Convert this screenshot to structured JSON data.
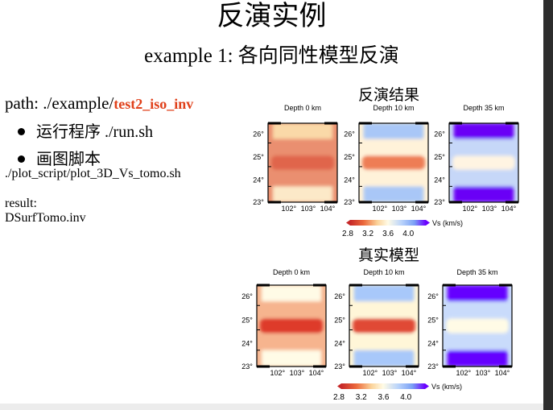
{
  "slide": {
    "title": "反演实例",
    "subtitle": "example 1: 各向同性模型反演",
    "path_prefix": "path: ./example/",
    "path_highlight": "test2_iso_inv",
    "bullets": [
      "运行程序 ./run.sh",
      "画图脚本"
    ],
    "script_path": "./plot_script/plot_3D_Vs_tomo.sh",
    "result_label": "result:",
    "result_file": "DSurfTomo.inv",
    "inversion_title": "反演结果",
    "true_title": "真实模型"
  },
  "colors": {
    "highlight": "#e0401a",
    "scale_low": "#c62828",
    "scale_mid": "#fffbe6",
    "scale_high": "#6a00ff"
  },
  "chart_data": [
    {
      "type": "heatmap",
      "title": "反演结果",
      "panel_titles": [
        "Depth 0 km",
        "Depth 10 km",
        "Depth 35 km"
      ],
      "x_ticks": [
        "102°",
        "103°",
        "104°"
      ],
      "y_ticks": [
        "26°",
        "25°",
        "24°",
        "23°"
      ],
      "colorbar": {
        "label": "Vs (km/s)",
        "ticks": [
          "2.8",
          "3.2",
          "3.6",
          "4.0"
        ],
        "range": [
          2.8,
          4.0
        ]
      },
      "bands": [
        [
          "#fad9a8",
          "#ea8f6f",
          "#e0654c",
          "#ea8f6f",
          "#fce9c8"
        ],
        [
          "#a9c7f7",
          "#fff2d9",
          "#ee7d54",
          "#fff2d9",
          "#a9c7f7"
        ],
        [
          "#6b00f6",
          "#c6d7f8",
          "#fff4e2",
          "#c6d7f8",
          "#6b00f6"
        ]
      ]
    },
    {
      "type": "heatmap",
      "title": "真实模型",
      "panel_titles": [
        "Depth 0 km",
        "Depth 10 km",
        "Depth 35 km"
      ],
      "x_ticks": [
        "102°",
        "103°",
        "104°"
      ],
      "y_ticks": [
        "26°",
        "25°",
        "24°",
        "23°"
      ],
      "colorbar": {
        "label": "Vs (km/s)",
        "ticks": [
          "2.8",
          "3.2",
          "3.6",
          "4.0"
        ],
        "range": [
          2.8,
          4.0
        ]
      },
      "bands": [
        [
          "#fffbe6",
          "#f6b48e",
          "#de3a2c",
          "#f6b48e",
          "#fffbe6"
        ],
        [
          "#a8c8fa",
          "#fff6d8",
          "#e04a35",
          "#fff6d8",
          "#a8c8fa"
        ],
        [
          "#6500ff",
          "#c9dbfb",
          "#fffbe6",
          "#c9dbfb",
          "#6500ff"
        ]
      ]
    }
  ]
}
